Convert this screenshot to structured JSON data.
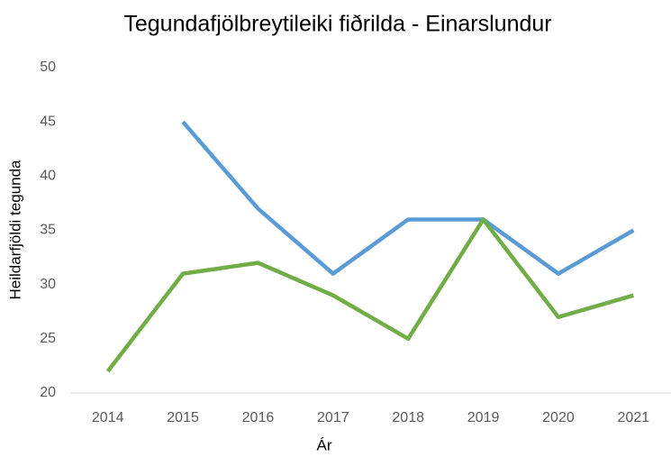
{
  "chart_data": {
    "type": "line",
    "title": "Tegundafjölbreytileiki fiðrilda - Einarslundur",
    "x_label": "Ár",
    "y_label": "Heildarfjöldi tegunda",
    "categories": [
      "2014",
      "2015",
      "2016",
      "2017",
      "2018",
      "2019",
      "2020",
      "2021"
    ],
    "series": [
      {
        "color": "#5b9bd5",
        "values": [
          null,
          45,
          37,
          31,
          36,
          36,
          31,
          35
        ]
      },
      {
        "color": "#70ad47",
        "values": [
          22,
          31,
          32,
          29,
          25,
          36,
          27,
          29
        ]
      }
    ],
    "ylim": [
      20,
      50
    ],
    "yticks": [
      20,
      25,
      30,
      35,
      40,
      45,
      50
    ],
    "grid": false
  }
}
